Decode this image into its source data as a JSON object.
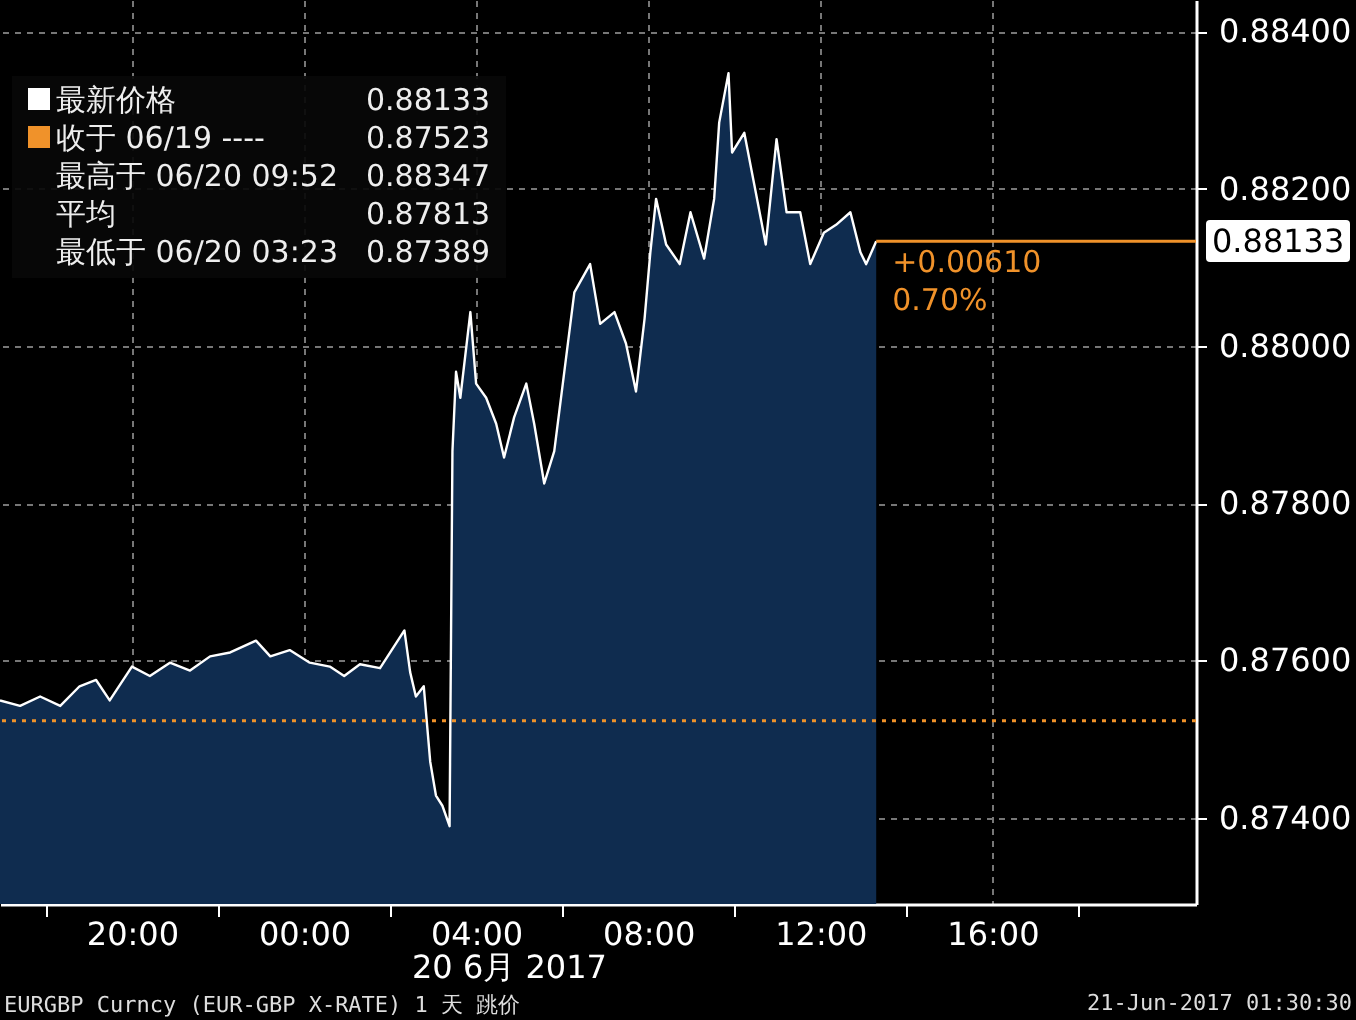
{
  "chart_data": {
    "type": "area",
    "legend": "top left",
    "marker": "none",
    "line_style": "solid",
    "grid": true,
    "xlim": [
      "2017-06-19T16:56",
      "2017-06-20T20:44"
    ],
    "ylim": [
      0.8729,
      0.8844
    ],
    "xticks": [
      {
        "value": "2017-06-19T18:00",
        "label": null
      },
      {
        "value": "2017-06-19T20:00",
        "label": "20:00"
      },
      {
        "value": "2017-06-19T22:00",
        "label": null
      },
      {
        "value": "2017-06-20T00:00",
        "label": "00:00"
      },
      {
        "value": "2017-06-20T02:00",
        "label": null
      },
      {
        "value": "2017-06-20T04:00",
        "label": "04:00"
      },
      {
        "value": "2017-06-20T06:00",
        "label": null
      },
      {
        "value": "2017-06-20T08:00",
        "label": "08:00"
      },
      {
        "value": "2017-06-20T10:00",
        "label": null
      },
      {
        "value": "2017-06-20T12:00",
        "label": "12:00"
      },
      {
        "value": "2017-06-20T14:00",
        "label": null
      },
      {
        "value": "2017-06-20T16:00",
        "label": "16:00"
      },
      {
        "value": "2017-06-20T18:00",
        "label": null
      }
    ],
    "yticks": [
      {
        "value": 0.874,
        "label": "0.87400"
      },
      {
        "value": 0.876,
        "label": "0.87600"
      },
      {
        "value": 0.878,
        "label": "0.87800"
      },
      {
        "value": 0.88,
        "label": "0.88000"
      },
      {
        "value": 0.882,
        "label": "0.88200"
      },
      {
        "value": 0.884,
        "label": "0.88400"
      }
    ],
    "series": [
      {
        "name": "最新价格",
        "color": "#ffffff",
        "x": [
          "2017-06-19T16:56",
          "2017-06-19T17:24",
          "2017-06-19T17:52",
          "2017-06-19T18:20",
          "2017-06-19T18:47",
          "2017-06-19T19:10",
          "2017-06-19T19:29",
          "2017-06-19T20:00",
          "2017-06-19T20:25",
          "2017-06-19T20:53",
          "2017-06-19T21:21",
          "2017-06-19T21:49",
          "2017-06-19T22:17",
          "2017-06-19T22:53",
          "2017-06-19T23:13",
          "2017-06-19T23:40",
          "2017-06-20T00:08",
          "2017-06-20T00:36",
          "2017-06-20T00:56",
          "2017-06-20T01:18",
          "2017-06-20T01:46",
          "2017-06-20T02:20",
          "2017-06-20T02:28",
          "2017-06-20T02:36",
          "2017-06-20T02:47",
          "2017-06-20T02:56",
          "2017-06-20T03:04",
          "2017-06-20T03:13",
          "2017-06-20T03:23",
          "2017-06-20T03:27",
          "2017-06-20T03:32",
          "2017-06-20T03:38",
          "2017-06-20T03:52",
          "2017-06-20T04:00",
          "2017-06-20T04:14",
          "2017-06-20T04:28",
          "2017-06-20T04:39",
          "2017-06-20T04:53",
          "2017-06-20T05:10",
          "2017-06-20T05:21",
          "2017-06-20T05:35",
          "2017-06-20T05:49",
          "2017-06-20T06:03",
          "2017-06-20T06:17",
          "2017-06-20T06:39",
          "2017-06-20T06:53",
          "2017-06-20T07:13",
          "2017-06-20T07:29",
          "2017-06-20T07:43",
          "2017-06-20T07:55",
          "2017-06-20T08:03",
          "2017-06-20T08:11",
          "2017-06-20T08:25",
          "2017-06-20T08:44",
          "2017-06-20T08:59",
          "2017-06-20T09:18",
          "2017-06-20T09:32",
          "2017-06-20T09:39",
          "2017-06-20T09:52",
          "2017-06-20T09:57",
          "2017-06-20T10:14",
          "2017-06-20T10:28",
          "2017-06-20T10:44",
          "2017-06-20T10:59",
          "2017-06-20T11:13",
          "2017-06-20T11:32",
          "2017-06-20T11:46",
          "2017-06-20T12:05",
          "2017-06-20T12:22",
          "2017-06-20T12:42",
          "2017-06-20T12:56",
          "2017-06-20T13:04",
          "2017-06-20T13:18"
        ],
        "values": [
          0.87549,
          0.87542,
          0.87554,
          0.87542,
          0.87567,
          0.87575,
          0.87549,
          0.87592,
          0.8758,
          0.87597,
          0.87587,
          0.87605,
          0.8761,
          0.87625,
          0.87605,
          0.87613,
          0.87597,
          0.87592,
          0.8758,
          0.87595,
          0.8759,
          0.87638,
          0.87585,
          0.87554,
          0.87567,
          0.87471,
          0.87428,
          0.87415,
          0.87389,
          0.87866,
          0.87967,
          0.87934,
          0.88043,
          0.87952,
          0.87934,
          0.87901,
          0.87858,
          0.87909,
          0.87952,
          0.87901,
          0.87825,
          0.87866,
          0.87967,
          0.88068,
          0.88104,
          0.88028,
          0.88043,
          0.88003,
          0.87942,
          0.88035,
          0.88119,
          0.88187,
          0.88129,
          0.88104,
          0.8817,
          0.88111,
          0.88187,
          0.88284,
          0.88347,
          0.88246,
          0.88271,
          0.88205,
          0.88129,
          0.88263,
          0.8817,
          0.8817,
          0.88104,
          0.88144,
          0.88154,
          0.8817,
          0.88119,
          0.88104,
          0.88133
        ]
      }
    ],
    "ref_lines": [
      {
        "axis": "y",
        "value": 0.87523,
        "color": "#f0922a",
        "line_style": "dotted"
      },
      {
        "axis": "y",
        "value": 0.88133,
        "label": "0.88133",
        "color": "#f0922a",
        "line_style": "solid"
      }
    ],
    "annotations": [
      "0.88133",
      "收于 06/19 ----",
      "0.87523",
      "最高于 06/20 09:52",
      "0.88347",
      "平均",
      "0.87813",
      "最低于 06/20 03:23",
      "0.87389",
      "+0.00610",
      "0.70%",
      "20 6月 2017",
      "EURGBP Curncy (EUR-GBP X-RATE) 1 天  跳价",
      "21-Jun-2017 01:30:30"
    ]
  }
}
